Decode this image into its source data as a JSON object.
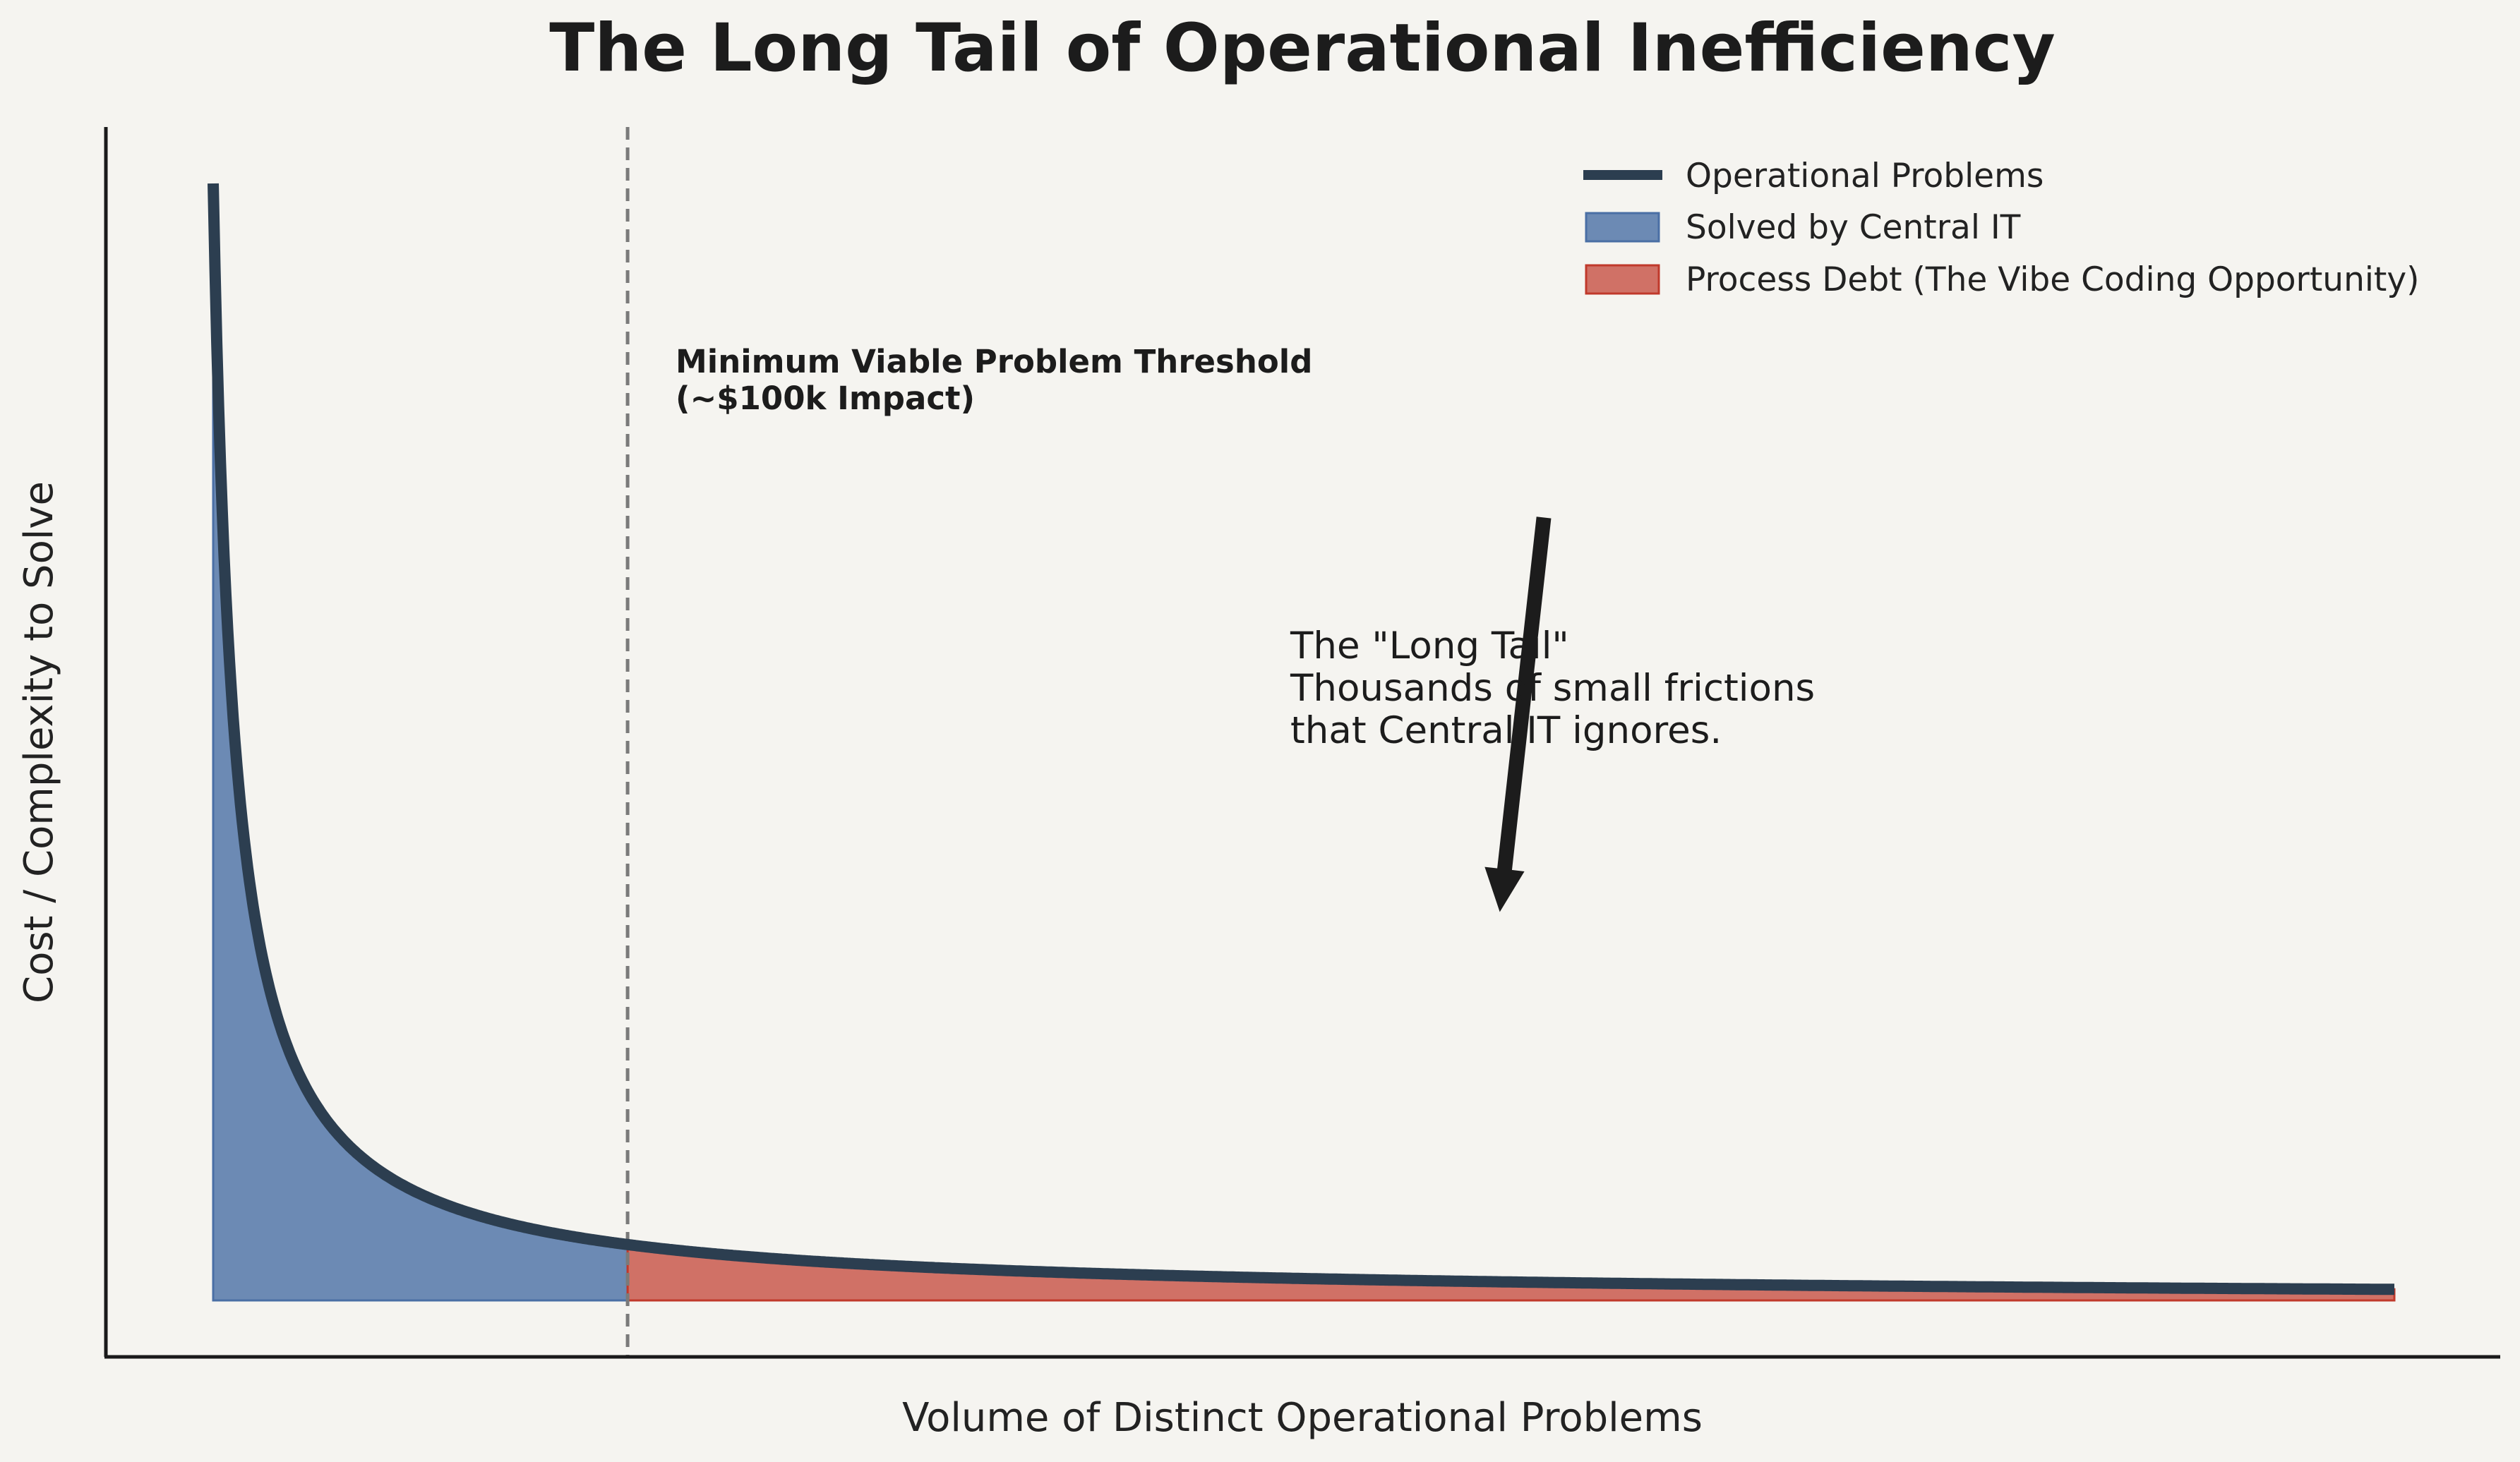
{
  "chart_data": {
    "type": "area",
    "title": "The Long Tail of Operational Inefficiency",
    "xlabel": "Volume of Distinct Operational Problems",
    "ylabel": "Cost / Complexity to Solve",
    "x_ticks": [],
    "y_ticks": [],
    "xlim": [
      0,
      100
    ],
    "ylim": [
      0,
      105
    ],
    "curve": {
      "name": "Operational Problems",
      "formula": "y = 100 / (x + 1)",
      "x_start": 0,
      "x_end": 100,
      "color": "#2c3e50"
    },
    "regions": [
      {
        "name": "Solved by Central IT",
        "x_range": [
          0,
          19
        ],
        "color": "#4a6fa5"
      },
      {
        "name": "Process Debt (The Vibe Coding Opportunity)",
        "x_range": [
          19,
          100
        ],
        "color": "#c0392b"
      }
    ],
    "threshold": {
      "x": 19,
      "label_line1": "Minimum Viable Problem Threshold",
      "label_line2": "(~$100k Impact)"
    },
    "annotation": {
      "lines": [
        "The \"Long Tail\"",
        "Thousands of small frictions",
        "that Central IT ignores."
      ],
      "arrow_from": [
        61,
        70
      ],
      "arrow_to": [
        59,
        35
      ]
    },
    "legend": {
      "placement": "top-right",
      "entries": [
        "Operational Problems",
        "Solved by Central IT",
        "Process Debt (The Vibe Coding Opportunity)"
      ]
    },
    "grid": false
  }
}
